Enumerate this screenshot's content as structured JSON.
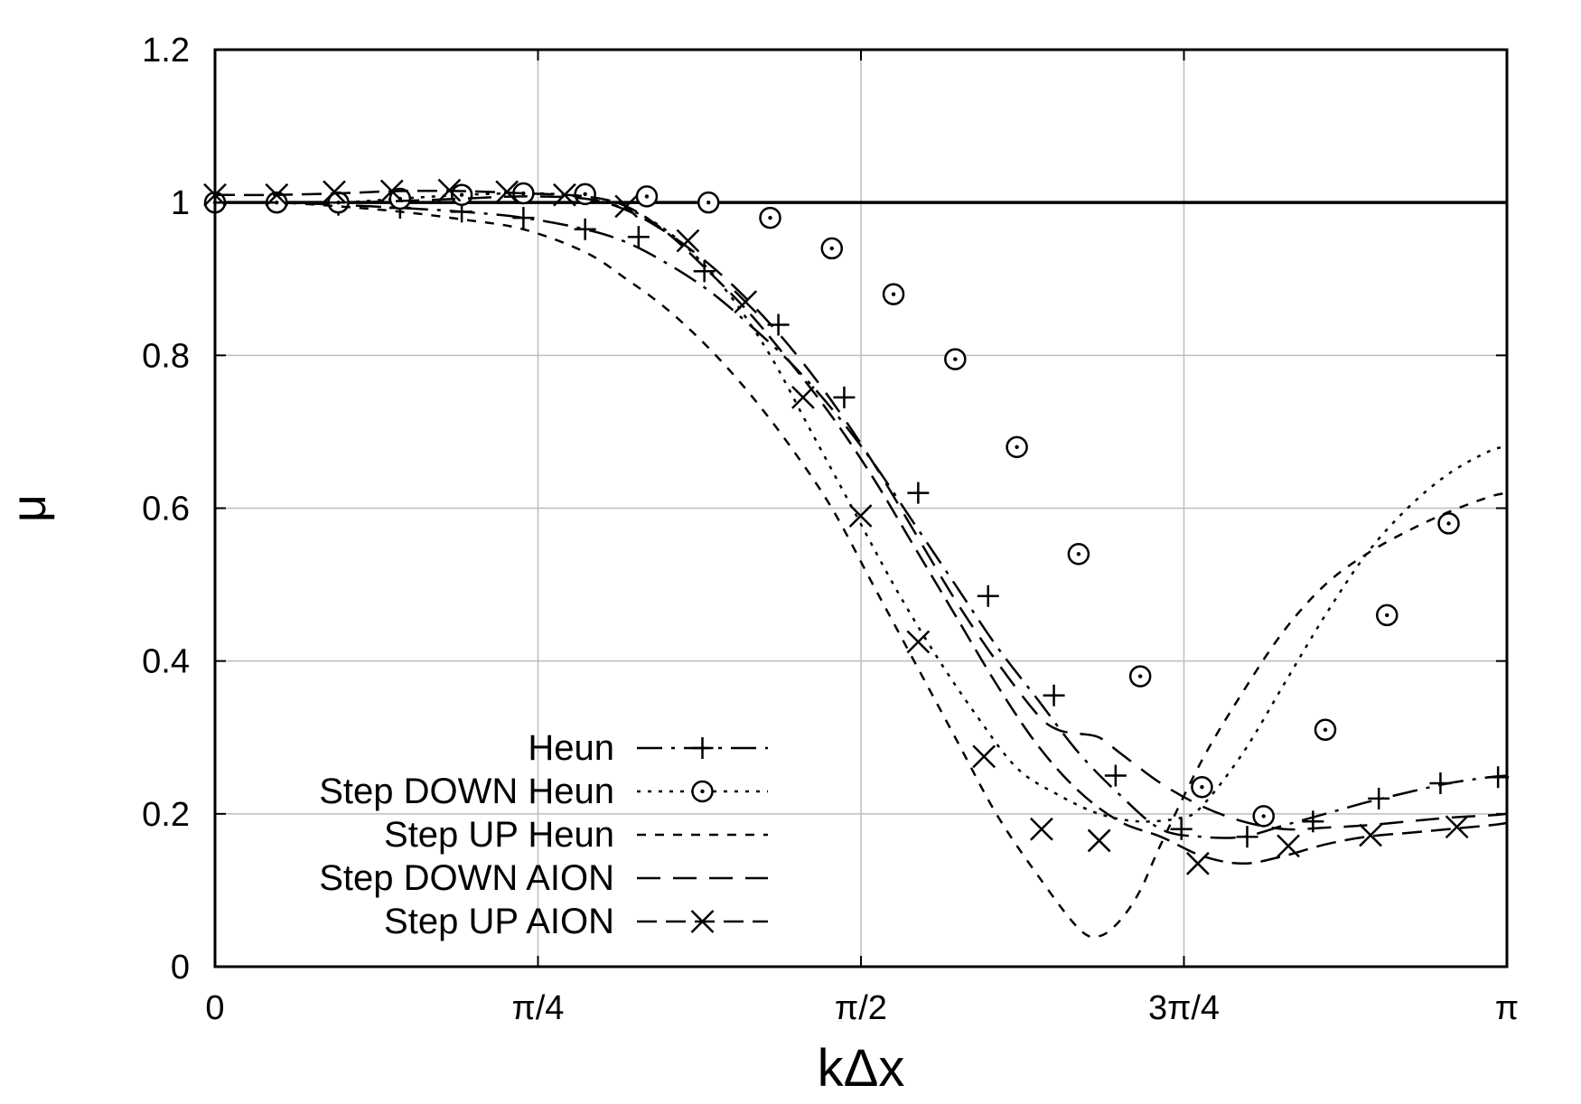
{
  "chart_data": {
    "type": "line",
    "title": "",
    "xlabel": "kΔx",
    "ylabel": "μ",
    "xlim": [
      0,
      3.14159265
    ],
    "ylim": [
      0,
      1.2
    ],
    "grid": true,
    "legend_position": "bottom-left",
    "x_ticks": [
      {
        "value": 0,
        "label": "0"
      },
      {
        "value": 0.78539816,
        "label": "π/4"
      },
      {
        "value": 1.57079633,
        "label": "π/2"
      },
      {
        "value": 2.35619449,
        "label": "3π/4"
      },
      {
        "value": 3.14159265,
        "label": "π"
      }
    ],
    "y_ticks": [
      {
        "value": 0,
        "label": "0"
      },
      {
        "value": 0.2,
        "label": "0.2"
      },
      {
        "value": 0.4,
        "label": "0.4"
      },
      {
        "value": 0.6,
        "label": "0.6"
      },
      {
        "value": 0.8,
        "label": "0.8"
      },
      {
        "value": 1,
        "label": "1"
      },
      {
        "value": 1.2,
        "label": "1.2"
      }
    ],
    "reference_line": {
      "y": 1.0
    },
    "series": [
      {
        "name": "Heun",
        "dash": "28,10,4,10",
        "marker": "plus",
        "x": [
          0,
          0.15,
          0.3,
          0.45,
          0.6,
          0.75,
          0.9,
          1.0,
          1.1,
          1.2,
          1.3,
          1.4,
          1.5,
          1.6,
          1.7,
          1.8,
          1.9,
          2.0,
          2.1,
          2.2,
          2.3,
          2.4,
          2.5,
          2.6,
          2.7,
          2.8,
          2.9,
          3.0,
          3.1,
          3.1416
        ],
        "y": [
          1.0,
          1.0,
          0.997,
          0.993,
          0.988,
          0.98,
          0.965,
          0.948,
          0.92,
          0.885,
          0.84,
          0.79,
          0.73,
          0.66,
          0.58,
          0.5,
          0.42,
          0.35,
          0.28,
          0.225,
          0.18,
          0.17,
          0.17,
          0.185,
          0.2,
          0.215,
          0.228,
          0.24,
          0.248,
          0.25
        ],
        "marker_x": [
          0,
          0.15,
          0.3,
          0.45,
          0.6,
          0.75,
          0.9,
          1.03,
          1.19,
          1.37,
          1.53,
          1.71,
          1.88,
          2.04,
          2.19,
          2.35,
          2.51,
          2.67,
          2.83,
          2.98,
          3.12
        ],
        "marker_y": [
          1.0,
          1.0,
          0.997,
          0.993,
          0.988,
          0.98,
          0.965,
          0.955,
          0.91,
          0.84,
          0.745,
          0.62,
          0.485,
          0.355,
          0.25,
          0.18,
          0.17,
          0.19,
          0.22,
          0.24,
          0.248
        ]
      },
      {
        "name": "Step DOWN Heun",
        "dash": "4,8",
        "marker": "circle",
        "x": [
          0,
          0.15,
          0.3,
          0.45,
          0.6,
          0.75,
          0.85,
          0.95,
          1.05,
          1.15,
          1.25,
          1.35,
          1.45,
          1.55,
          1.65,
          1.75,
          1.85,
          1.95,
          2.05,
          2.15,
          2.25,
          2.35,
          2.4,
          2.5,
          2.6,
          2.7,
          2.8,
          2.9,
          3.0,
          3.1,
          3.1416
        ],
        "y": [
          1.0,
          1.0,
          1.0,
          1.005,
          1.01,
          1.012,
          1.01,
          1.0,
          0.98,
          0.94,
          0.88,
          0.8,
          0.7,
          0.6,
          0.5,
          0.41,
          0.33,
          0.26,
          0.225,
          0.2,
          0.19,
          0.195,
          0.21,
          0.28,
          0.37,
          0.46,
          0.54,
          0.6,
          0.645,
          0.675,
          0.68
        ],
        "marker_x": [
          0,
          0.15,
          0.3,
          0.45,
          0.6,
          0.75,
          0.9,
          1.05,
          1.2,
          1.35,
          1.5,
          1.65,
          1.8,
          1.95,
          2.1,
          2.25,
          2.4,
          2.55,
          2.7,
          2.85,
          3.0
        ],
        "marker_y": [
          1.0,
          1.0,
          1.0,
          1.005,
          1.01,
          1.012,
          1.011,
          1.008,
          1.0,
          0.98,
          0.94,
          0.88,
          0.795,
          0.68,
          0.54,
          0.38,
          0.235,
          0.197,
          0.31,
          0.46,
          0.58
        ]
      },
      {
        "name": "Step UP Heun",
        "dash": "10,10",
        "marker": "none",
        "x": [
          0,
          0.15,
          0.3,
          0.45,
          0.6,
          0.75,
          0.9,
          1.0,
          1.1,
          1.2,
          1.3,
          1.4,
          1.5,
          1.6,
          1.7,
          1.8,
          1.9,
          2.0,
          2.1,
          2.15,
          2.2,
          2.25,
          2.3,
          2.4,
          2.5,
          2.6,
          2.7,
          2.8,
          2.9,
          3.0,
          3.1,
          3.1416
        ],
        "y": [
          1.0,
          1.0,
          0.995,
          0.988,
          0.978,
          0.965,
          0.935,
          0.9,
          0.86,
          0.81,
          0.75,
          0.68,
          0.6,
          0.5,
          0.4,
          0.3,
          0.2,
          0.12,
          0.05,
          0.04,
          0.06,
          0.1,
          0.16,
          0.27,
          0.36,
          0.44,
          0.5,
          0.54,
          0.57,
          0.595,
          0.615,
          0.62
        ],
        "marker_x": [],
        "marker_y": []
      },
      {
        "name": "Step DOWN AION",
        "dash": "26,14",
        "marker": "none",
        "x": [
          0,
          0.15,
          0.3,
          0.45,
          0.6,
          0.75,
          0.9,
          1.0,
          1.1,
          1.2,
          1.3,
          1.4,
          1.5,
          1.6,
          1.7,
          1.8,
          1.9,
          2.0,
          2.05,
          2.1,
          2.15,
          2.2,
          2.3,
          2.4,
          2.5,
          2.6,
          2.7,
          2.8,
          2.9,
          3.0,
          3.1,
          3.1416
        ],
        "y": [
          1.0,
          1.0,
          1.0,
          1.002,
          1.005,
          1.008,
          1.005,
          0.99,
          0.96,
          0.92,
          0.87,
          0.81,
          0.74,
          0.66,
          0.57,
          0.48,
          0.4,
          0.33,
          0.31,
          0.305,
          0.3,
          0.28,
          0.24,
          0.21,
          0.19,
          0.18,
          0.182,
          0.185,
          0.19,
          0.195,
          0.198,
          0.2
        ],
        "marker_x": [],
        "marker_y": []
      },
      {
        "name": "Step UP AION",
        "dash": "22,10",
        "marker": "cross",
        "x": [
          0,
          0.15,
          0.3,
          0.45,
          0.6,
          0.75,
          0.9,
          1.0,
          1.1,
          1.2,
          1.3,
          1.4,
          1.5,
          1.6,
          1.7,
          1.8,
          1.9,
          2.0,
          2.1,
          2.2,
          2.3,
          2.4,
          2.5,
          2.6,
          2.7,
          2.8,
          2.9,
          3.0,
          3.1,
          3.1416
        ],
        "y": [
          1.01,
          1.01,
          1.012,
          1.015,
          1.015,
          1.012,
          1.008,
          0.995,
          0.96,
          0.91,
          0.855,
          0.79,
          0.72,
          0.64,
          0.55,
          0.46,
          0.37,
          0.29,
          0.23,
          0.19,
          0.17,
          0.145,
          0.135,
          0.145,
          0.16,
          0.17,
          0.175,
          0.18,
          0.185,
          0.188
        ],
        "marker_x": [
          0,
          0.15,
          0.29,
          0.43,
          0.57,
          0.71,
          0.85,
          1.0,
          1.15,
          1.29,
          1.43,
          1.57,
          1.71,
          1.87,
          2.01,
          2.15,
          2.39,
          2.61,
          2.81,
          3.02
        ],
        "marker_y": [
          1.01,
          1.01,
          1.014,
          1.015,
          1.016,
          1.014,
          1.01,
          0.995,
          0.95,
          0.87,
          0.745,
          0.59,
          0.425,
          0.275,
          0.18,
          0.165,
          0.135,
          0.158,
          0.172,
          0.183
        ]
      }
    ]
  }
}
